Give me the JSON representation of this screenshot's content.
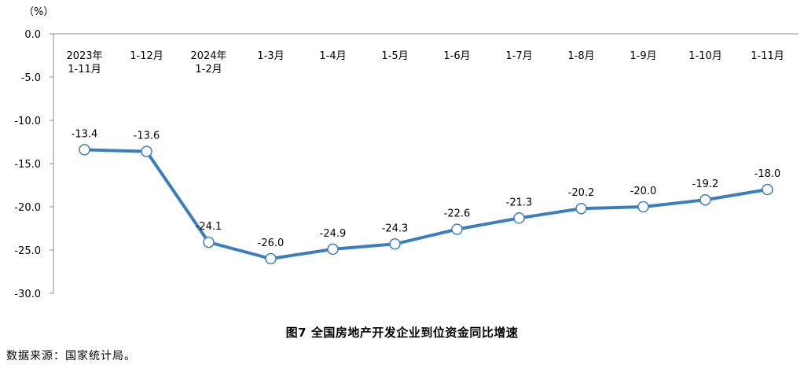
{
  "chart_data": {
    "type": "line",
    "title": "图7 全国房地产开发企业到位资金同比增速",
    "y_unit": "（%）",
    "categories": [
      [
        "2023年",
        "1-11月"
      ],
      [
        "1-12月"
      ],
      [
        "2024年",
        "1-2月"
      ],
      [
        "1-3月"
      ],
      [
        "1-4月"
      ],
      [
        "1-5月"
      ],
      [
        "1-6月"
      ],
      [
        "1-7月"
      ],
      [
        "1-8月"
      ],
      [
        "1-9月"
      ],
      [
        "1-10月"
      ],
      [
        "1-11月"
      ]
    ],
    "values": [
      -13.4,
      -13.6,
      -24.1,
      -26.0,
      -24.9,
      -24.3,
      -22.6,
      -21.3,
      -20.2,
      -20.0,
      -19.2,
      -18.0
    ],
    "data_labels": [
      "-13.4",
      "-13.6",
      "-24.1",
      "-26.0",
      "-24.9",
      "-24.3",
      "-22.6",
      "-21.3",
      "-20.2",
      "-20.0",
      "-19.2",
      "-18.0"
    ],
    "y_ticks": [
      0.0,
      -5.0,
      -10.0,
      -15.0,
      -20.0,
      -25.0,
      -30.0
    ],
    "y_tick_labels": [
      "0.0",
      "-5.0",
      "-10.0",
      "-15.0",
      "-20.0",
      "-25.0",
      "-30.0"
    ],
    "ylim": [
      -30,
      0
    ],
    "grid": false,
    "line_color": "#3A7EC0",
    "marker_fill": "#ffffff"
  },
  "source_note": "数据来源：国家统计局。"
}
